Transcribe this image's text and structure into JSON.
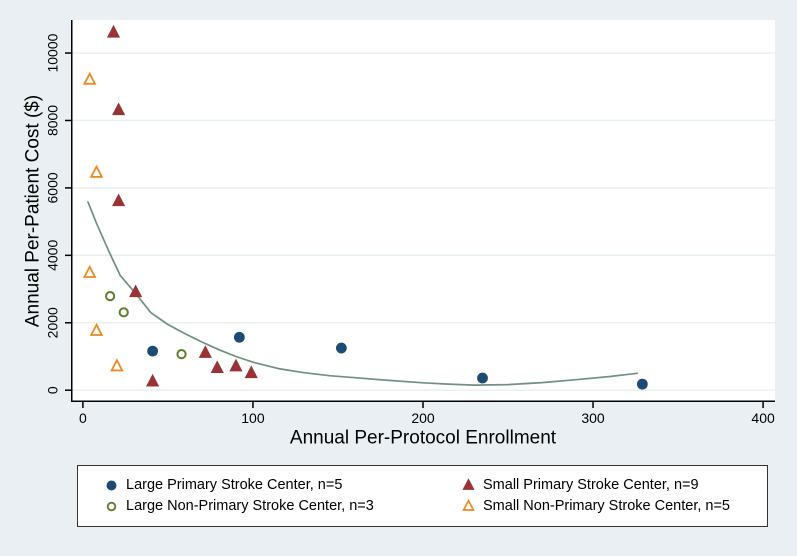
{
  "chart_data": {
    "type": "scatter",
    "title": "",
    "xlabel": "Annual Per-Protocol Enrollment",
    "ylabel": "Annual Per-Patient Cost ($)",
    "xlim": [
      -7,
      407
    ],
    "ylim": [
      -350,
      10980
    ],
    "xticks": [
      0,
      100,
      200,
      300,
      400
    ],
    "yticks": [
      0,
      2000,
      4000,
      6000,
      8000,
      10000
    ],
    "grid": "horizontal-gridlines",
    "legend_position": "bottom-box-two-columns",
    "series": [
      {
        "name": "Large Primary Stroke Center, n=5",
        "marker": "filled-circle",
        "color": "#1d4b74",
        "points": [
          [
            41,
            1160
          ],
          [
            92,
            1570
          ],
          [
            152,
            1250
          ],
          [
            235,
            360
          ],
          [
            329,
            180
          ]
        ]
      },
      {
        "name": "Small Primary Stroke Center, n=9",
        "marker": "filled-triangle",
        "color": "#9a3335",
        "points": [
          [
            18,
            10600
          ],
          [
            21,
            8300
          ],
          [
            21,
            5600
          ],
          [
            31,
            2900
          ],
          [
            41,
            250
          ],
          [
            72,
            1100
          ],
          [
            79,
            650
          ],
          [
            90,
            700
          ],
          [
            99,
            500
          ]
        ]
      },
      {
        "name": "Large Non-Primary Stroke Center, n=3",
        "marker": "open-circle",
        "color": "#5e7e2b",
        "points": [
          [
            16,
            2790
          ],
          [
            24,
            2310
          ],
          [
            58,
            1070
          ]
        ]
      },
      {
        "name": "Small Non-Primary Stroke Center, n=5",
        "marker": "open-triangle",
        "color": "#ec8a21",
        "points": [
          [
            4,
            9200
          ],
          [
            8,
            6440
          ],
          [
            4,
            3470
          ],
          [
            8,
            1750
          ],
          [
            20,
            700
          ]
        ]
      }
    ],
    "fit_curve": {
      "name": "lowess-fit-line",
      "color": "#6f9181",
      "points": [
        [
          3,
          5580
        ],
        [
          8,
          4950
        ],
        [
          15,
          4150
        ],
        [
          22,
          3400
        ],
        [
          31,
          2870
        ],
        [
          40,
          2300
        ],
        [
          50,
          1950
        ],
        [
          60,
          1680
        ],
        [
          70,
          1430
        ],
        [
          80,
          1200
        ],
        [
          90,
          1000
        ],
        [
          100,
          830
        ],
        [
          115,
          640
        ],
        [
          130,
          520
        ],
        [
          145,
          430
        ],
        [
          160,
          370
        ],
        [
          180,
          290
        ],
        [
          200,
          220
        ],
        [
          215,
          180
        ],
        [
          230,
          150
        ],
        [
          250,
          165
        ],
        [
          270,
          225
        ],
        [
          290,
          310
        ],
        [
          310,
          405
        ],
        [
          326,
          500
        ]
      ]
    },
    "colors": {
      "background": "#e9eff2",
      "plot_background": "#ffffff",
      "gridline": "#e6eff1",
      "axis": "#000000",
      "legend_border": "#333333"
    }
  }
}
